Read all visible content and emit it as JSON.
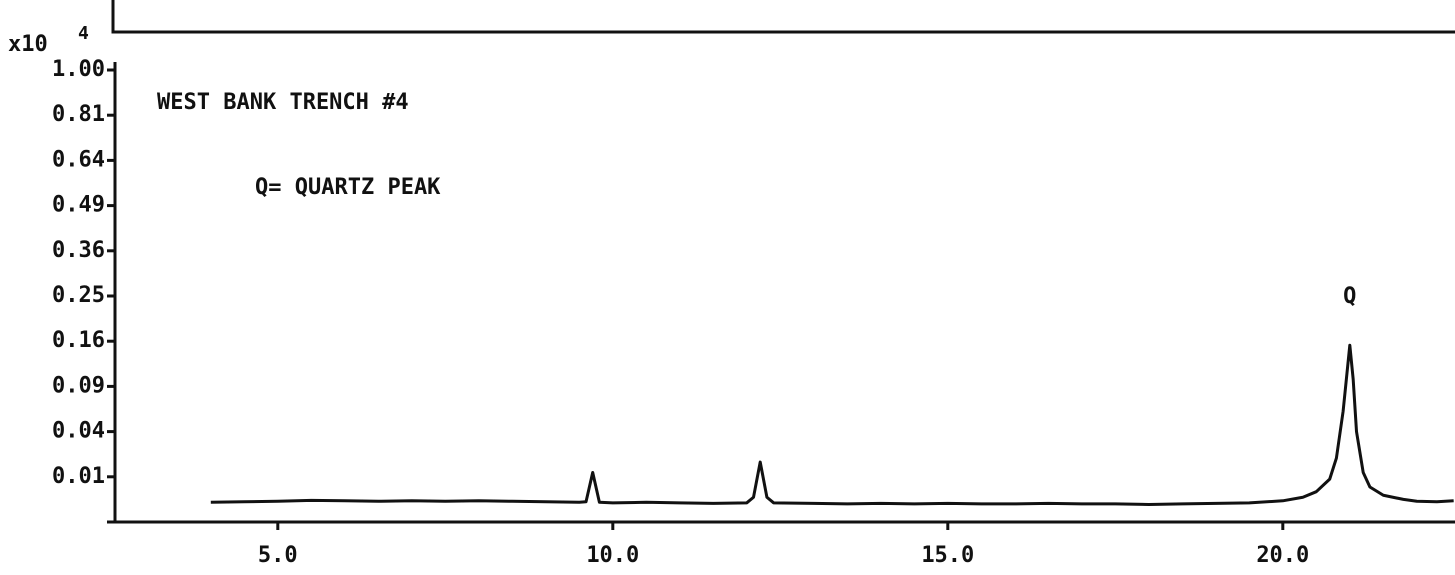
{
  "chart_data": {
    "type": "line",
    "title": "WEST BANK TRENCH #4",
    "annotations": [
      "Q= QUARTZ PEAK",
      "Q"
    ],
    "y_axis_multiplier": "x10",
    "y_axis_multiplier_exponent": "4",
    "yscale": "sqrt",
    "color": "#111111",
    "xlim": [
      2.57,
      22.57
    ],
    "ylim": [
      0,
      1
    ],
    "xticks": [
      {
        "value": 5,
        "label": "5.0"
      },
      {
        "value": 10,
        "label": "10.0"
      },
      {
        "value": 15,
        "label": "15.0"
      },
      {
        "value": 20,
        "label": "20.0"
      }
    ],
    "yticks": [
      0.01,
      0.04,
      0.09,
      0.16,
      0.25,
      0.36,
      0.49,
      0.64,
      0.81,
      {
        "value": 1,
        "label": "1.00"
      }
    ],
    "x": [
      4.0,
      4.5,
      5.0,
      5.5,
      6.0,
      6.5,
      7.0,
      7.5,
      8.0,
      8.5,
      9.0,
      9.5,
      9.6,
      9.7,
      9.8,
      10.0,
      10.5,
      11.0,
      11.5,
      12.0,
      12.1,
      12.2,
      12.3,
      12.4,
      13.0,
      13.5,
      14.0,
      14.5,
      15.0,
      15.5,
      16.0,
      16.5,
      17.0,
      17.5,
      18.0,
      18.5,
      19.0,
      19.5,
      20.0,
      20.3,
      20.5,
      20.7,
      20.8,
      20.9,
      21.0,
      21.05,
      21.1,
      21.2,
      21.3,
      21.5,
      21.8,
      22.0,
      22.3,
      22.55
    ],
    "values": [
      0.0019,
      0.002,
      0.0021,
      0.0023,
      0.0022,
      0.0021,
      0.0022,
      0.0021,
      0.0022,
      0.0021,
      0.002,
      0.0019,
      0.002,
      0.012,
      0.0019,
      0.0018,
      0.0019,
      0.0018,
      0.0017,
      0.0018,
      0.003,
      0.0176,
      0.003,
      0.0018,
      0.0017,
      0.0016,
      0.0017,
      0.0016,
      0.0017,
      0.0016,
      0.0016,
      0.0017,
      0.0016,
      0.0016,
      0.0015,
      0.0016,
      0.0017,
      0.0018,
      0.0022,
      0.003,
      0.0045,
      0.009,
      0.02,
      0.06,
      0.153,
      0.1,
      0.04,
      0.012,
      0.006,
      0.0035,
      0.0025,
      0.0021,
      0.002,
      0.0022
    ]
  }
}
